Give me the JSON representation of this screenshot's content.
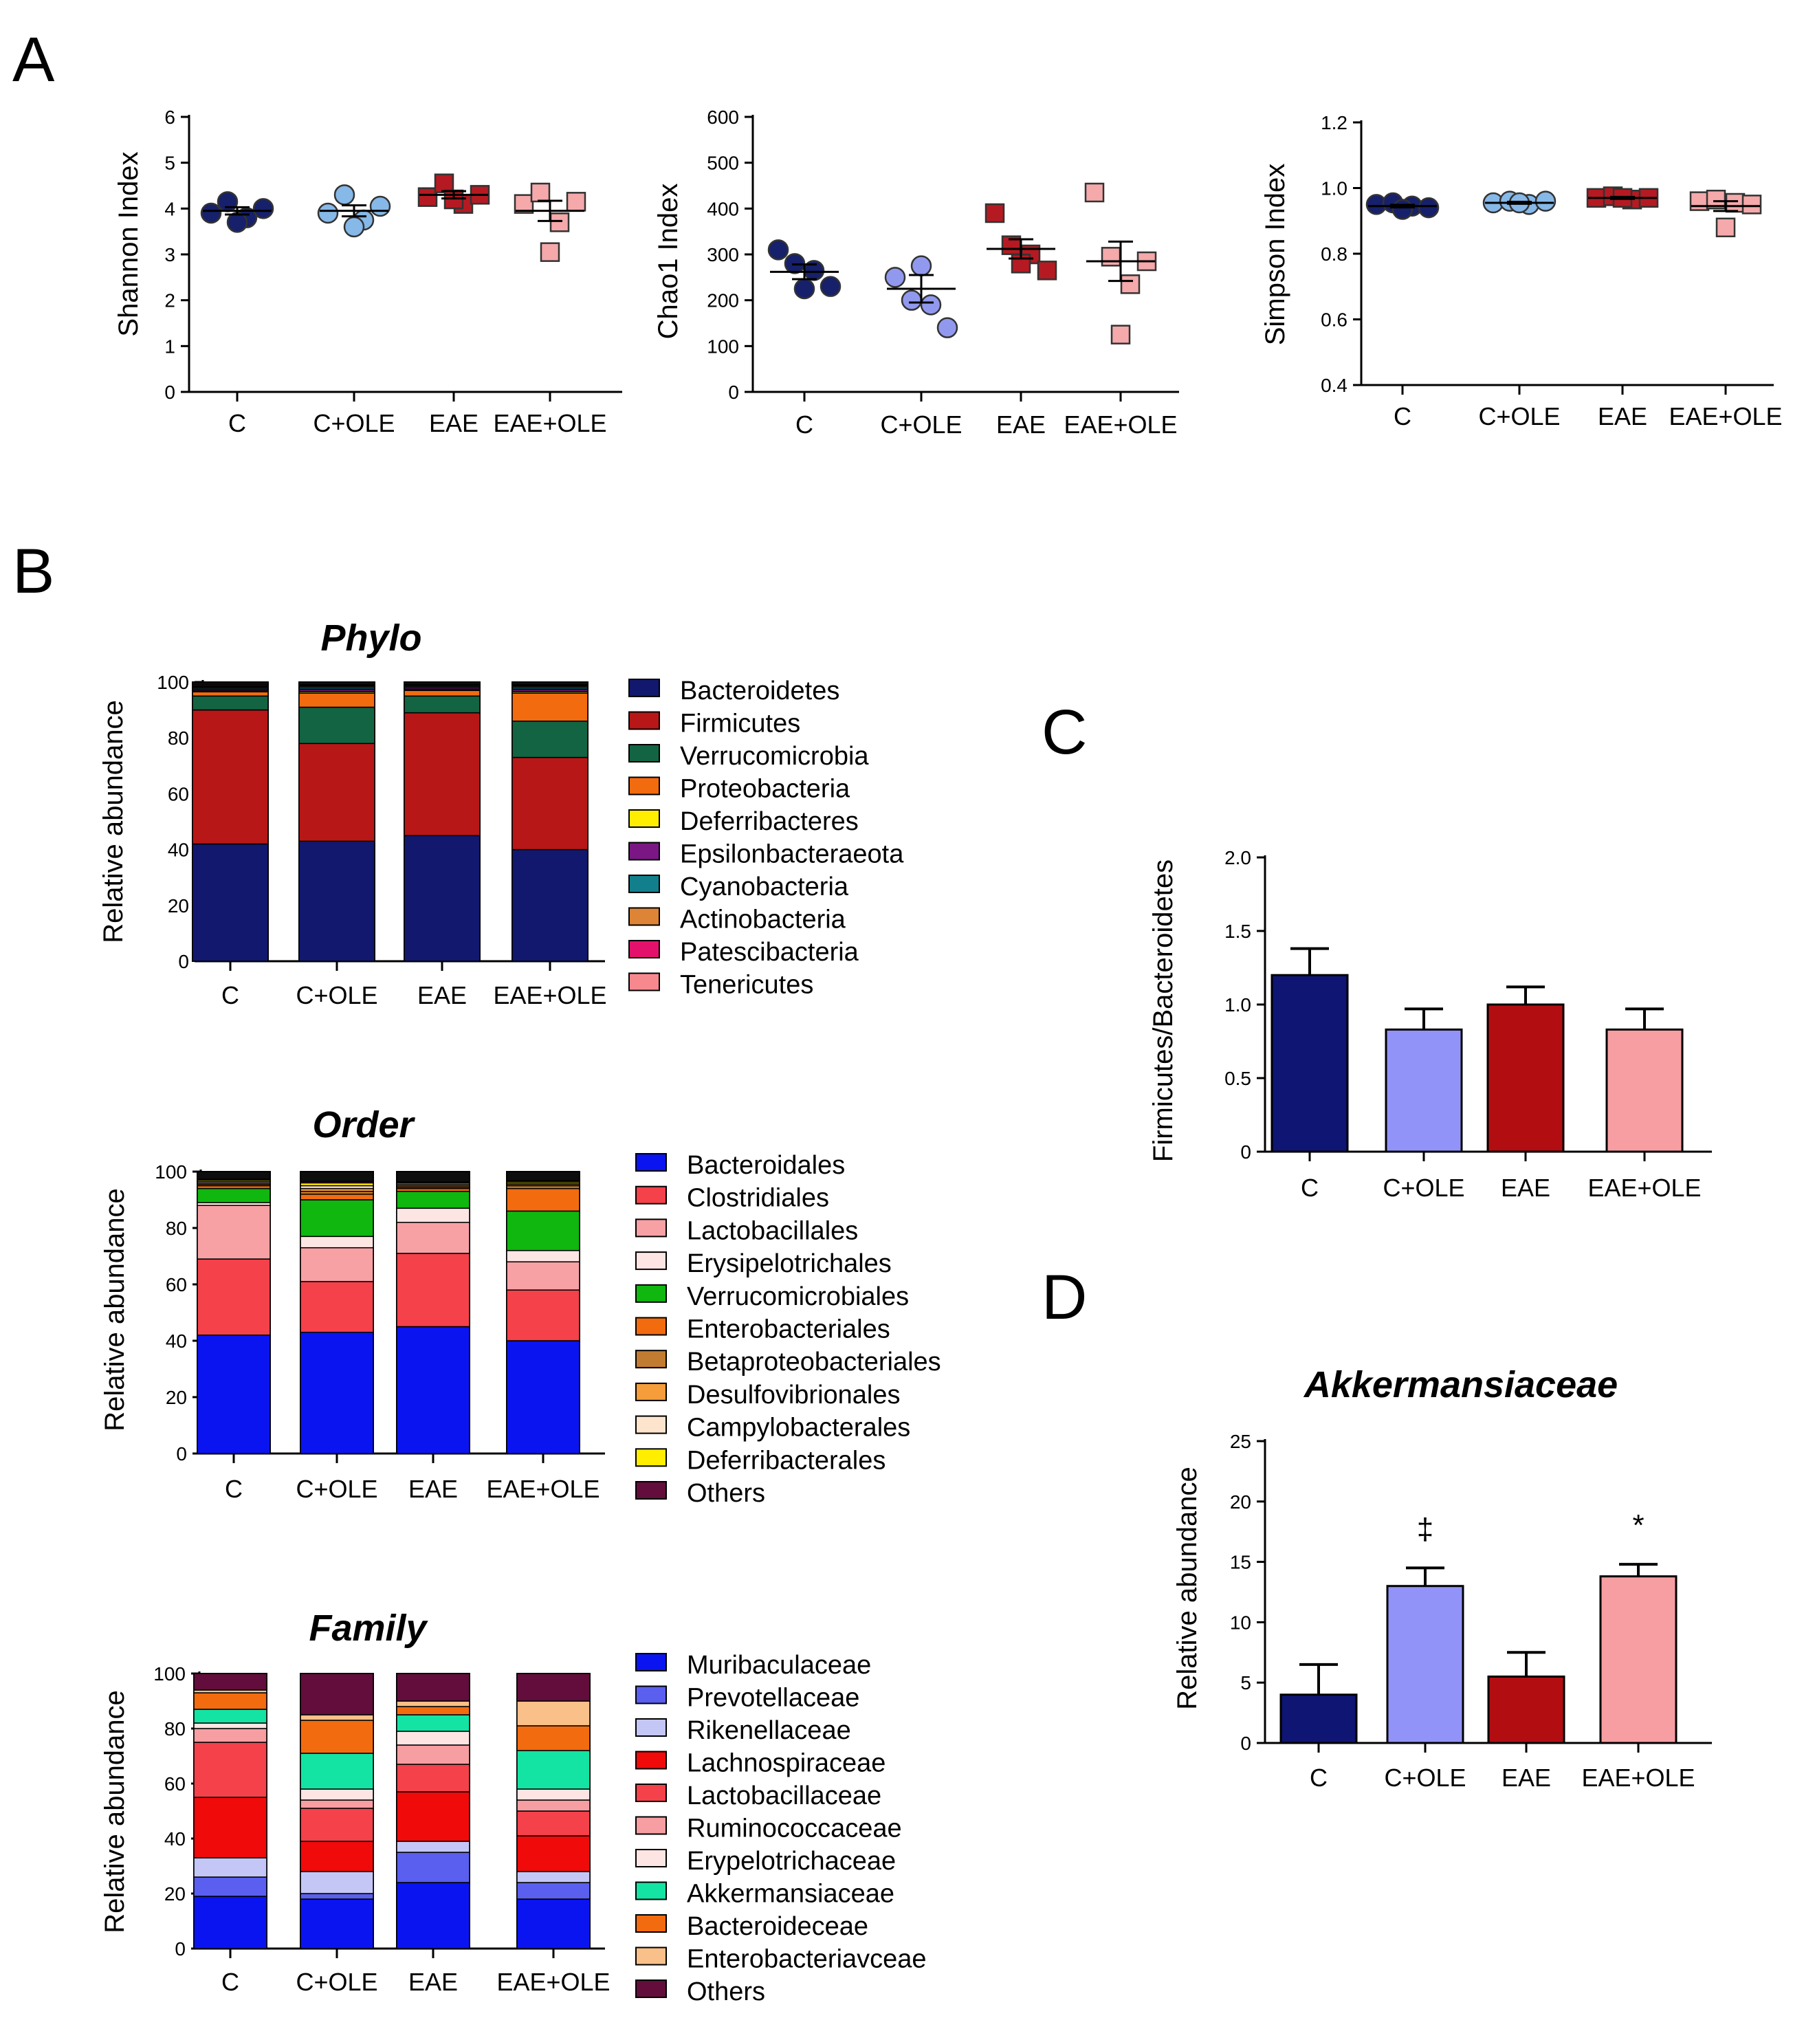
{
  "panel_letters": {
    "a": "A",
    "b": "B",
    "c": "C",
    "d": "D"
  },
  "chart_data": [
    {
      "id": "shannon",
      "type": "scatter",
      "panel": "A",
      "xlabel": "",
      "ylabel": "Shannon Index",
      "ylim": [
        0,
        6
      ],
      "yticks": [
        0,
        1,
        2,
        3,
        4,
        5,
        6
      ],
      "yticklabels": [
        "0",
        "1",
        "2",
        "3",
        "4",
        "5",
        "6"
      ],
      "categories": [
        "C",
        "C+OLE",
        "EAE",
        "EAE+OLE"
      ],
      "colors": [
        "#16206b",
        "#86b8e8",
        "#b51a22",
        "#f5a9aa"
      ],
      "markers": [
        "circle",
        "circle",
        "square",
        "square"
      ],
      "points": [
        [
          3.9,
          4.15,
          3.8,
          4.0,
          3.7
        ],
        [
          3.9,
          4.3,
          3.75,
          4.05,
          3.6
        ],
        [
          4.25,
          4.55,
          4.1,
          4.3,
          4.2
        ],
        [
          4.1,
          4.35,
          3.7,
          4.15,
          3.05
        ]
      ],
      "means": [
        3.95,
        3.95,
        4.3,
        3.95
      ],
      "sems": [
        0.08,
        0.12,
        0.08,
        0.22
      ]
    },
    {
      "id": "chao1",
      "type": "scatter",
      "panel": "A",
      "xlabel": "",
      "ylabel": "Chao1 Index",
      "ylim": [
        0,
        600
      ],
      "yticks": [
        0,
        100,
        200,
        300,
        400,
        500,
        600
      ],
      "yticklabels": [
        "0",
        "100",
        "200",
        "300",
        "400",
        "500",
        "600"
      ],
      "categories": [
        "C",
        "C+OLE",
        "EAE",
        "EAE+OLE"
      ],
      "colors": [
        "#16206b",
        "#9199ee",
        "#b51a22",
        "#f5a9aa"
      ],
      "markers": [
        "circle",
        "circle",
        "square",
        "square"
      ],
      "points": [
        [
          310,
          280,
          265,
          230,
          225
        ],
        [
          250,
          200,
          190,
          140,
          275
        ],
        [
          390,
          320,
          300,
          265,
          280
        ],
        [
          435,
          295,
          235,
          285,
          125
        ]
      ],
      "means": [
        262,
        225,
        312,
        285
      ],
      "sems": [
        16,
        30,
        21,
        43
      ]
    },
    {
      "id": "simpson",
      "type": "scatter",
      "panel": "A",
      "xlabel": "",
      "ylabel": "Simpson Index",
      "ylim": [
        0.4,
        1.2
      ],
      "yticks": [
        0.4,
        0.6,
        0.8,
        1.0,
        1.2
      ],
      "yticklabels": [
        "0.4",
        "0.6",
        "0.8",
        "1.0",
        "1.2"
      ],
      "categories": [
        "C",
        "C+OLE",
        "EAE",
        "EAE+OLE"
      ],
      "colors": [
        "#16206b",
        "#86b8e8",
        "#b51a22",
        "#f5a9aa"
      ],
      "markers": [
        "circle",
        "circle",
        "square",
        "square"
      ],
      "points": [
        [
          0.95,
          0.955,
          0.945,
          0.94,
          0.935
        ],
        [
          0.955,
          0.96,
          0.95,
          0.96,
          0.955
        ],
        [
          0.97,
          0.975,
          0.965,
          0.97,
          0.97
        ],
        [
          0.96,
          0.965,
          0.955,
          0.95,
          0.88
        ]
      ],
      "means": [
        0.945,
        0.955,
        0.97,
        0.945
      ],
      "sems": [
        0.004,
        0.003,
        0.003,
        0.015
      ]
    },
    {
      "id": "phylo",
      "type": "bar",
      "stacked": true,
      "panel": "B",
      "title": "Phylo",
      "xlabel": "",
      "ylabel": "Relative abundance",
      "ylim": [
        0,
        100
      ],
      "yticks": [
        0,
        20,
        40,
        60,
        80,
        100
      ],
      "categories": [
        "C",
        "C+OLE",
        "EAE",
        "EAE+OLE"
      ],
      "series": [
        {
          "name": "Bacteroidetes",
          "color": "#12186e",
          "values": [
            42,
            43,
            45,
            40
          ]
        },
        {
          "name": "Firmicutes",
          "color": "#b81717",
          "values": [
            48,
            35,
            44,
            33
          ]
        },
        {
          "name": "Verrucomicrobia",
          "color": "#136443",
          "values": [
            5,
            13,
            6,
            13
          ]
        },
        {
          "name": "Proteobacteria",
          "color": "#f26b0f",
          "values": [
            1.5,
            5,
            2,
            10
          ]
        },
        {
          "name": "Deferribacteres",
          "color": "#ffee00",
          "values": [
            0.3,
            0.5,
            0.3,
            0.5
          ]
        },
        {
          "name": "Epsilonbacteraeota",
          "color": "#7a1784",
          "values": [
            0.5,
            0.8,
            0.6,
            0.8
          ]
        },
        {
          "name": "Cyanobacteria",
          "color": "#127f8c",
          "values": [
            0.5,
            0.6,
            0.5,
            0.6
          ]
        },
        {
          "name": "Actinobacteria",
          "color": "#dd8436",
          "values": [
            0.4,
            0.5,
            0.4,
            0.5
          ]
        },
        {
          "name": "Patescibacteria",
          "color": "#e3116c",
          "values": [
            0.4,
            0.3,
            0.3,
            0.3
          ]
        },
        {
          "name": "Tenericutes",
          "color": "#f7898e",
          "values": [
            0.4,
            0.3,
            0.4,
            0.3
          ]
        }
      ],
      "residual": {
        "name": "",
        "color": "#0d0d0d"
      }
    },
    {
      "id": "order",
      "type": "bar",
      "stacked": true,
      "panel": "B",
      "title": "Order",
      "xlabel": "",
      "ylabel": "Relative abundance",
      "ylim": [
        0,
        100
      ],
      "yticks": [
        0,
        20,
        40,
        60,
        80,
        100
      ],
      "categories": [
        "C",
        "C+OLE",
        "EAE",
        "EAE+OLE"
      ],
      "series": [
        {
          "name": "Bacteroidales",
          "color": "#0a14f0",
          "values": [
            42,
            43,
            45,
            40
          ]
        },
        {
          "name": "Clostridiales",
          "color": "#f4414a",
          "values": [
            27,
            18,
            26,
            18
          ]
        },
        {
          "name": "Lactobacillales",
          "color": "#f7a1a5",
          "values": [
            19,
            12,
            11,
            10
          ]
        },
        {
          "name": "Erysipelotrichales",
          "color": "#fde5e3",
          "values": [
            1,
            4,
            5,
            4
          ]
        },
        {
          "name": "Verrucomicrobiales",
          "color": "#0fb70f",
          "values": [
            5,
            13,
            6,
            14
          ]
        },
        {
          "name": "Enterobacteriales",
          "color": "#f26b0f",
          "values": [
            1,
            2,
            1,
            8
          ]
        },
        {
          "name": "Betaproteobacteriales",
          "color": "#c27c31",
          "values": [
            0.5,
            1,
            0.5,
            1
          ]
        },
        {
          "name": "Desulfovibrionales",
          "color": "#f59d3a",
          "values": [
            0.5,
            1,
            0.5,
            0.5
          ]
        },
        {
          "name": "Campylobacterales",
          "color": "#fde4cc",
          "values": [
            0.5,
            1,
            0.5,
            0.5
          ]
        },
        {
          "name": "Deferribacterales",
          "color": "#ffee00",
          "values": [
            0.5,
            1,
            0.5,
            0.5
          ]
        },
        {
          "name": "Others",
          "color": "#620d3b",
          "values": [
            0.3,
            0.5,
            0.3,
            0.3
          ]
        }
      ],
      "residual": {
        "name": "",
        "color": "#0d0d0d"
      }
    },
    {
      "id": "family",
      "type": "bar",
      "stacked": true,
      "panel": "B",
      "title": "Family",
      "xlabel": "",
      "ylabel": "Relative abundance",
      "ylim": [
        0,
        100
      ],
      "yticks": [
        0,
        20,
        40,
        60,
        80,
        100
      ],
      "categories": [
        "C",
        "C+OLE",
        "EAE",
        "EAE+OLE"
      ],
      "series": [
        {
          "name": "Muribaculaceae",
          "color": "#0a14f0",
          "values": [
            19,
            18,
            24,
            18
          ]
        },
        {
          "name": "Prevotellaceae",
          "color": "#5a5ff0",
          "values": [
            7,
            2,
            11,
            6
          ]
        },
        {
          "name": "Rikenellaceae",
          "color": "#c4c6f6",
          "values": [
            7,
            8,
            4,
            4
          ]
        },
        {
          "name": "Lachnospiraceae",
          "color": "#f00a0a",
          "values": [
            22,
            11,
            18,
            13
          ]
        },
        {
          "name": "Lactobacillaceae",
          "color": "#f4414a",
          "values": [
            20,
            12,
            10,
            9
          ]
        },
        {
          "name": "Ruminococcaceae",
          "color": "#f69ea2",
          "values": [
            5,
            3,
            7,
            4
          ]
        },
        {
          "name": "Erypelotrichaceae",
          "color": "#fde5e3",
          "values": [
            2,
            4,
            5,
            4
          ]
        },
        {
          "name": "Akkermansiaceae",
          "color": "#13e4a4",
          "values": [
            5,
            13,
            6,
            14
          ]
        },
        {
          "name": "Bacteroideceae",
          "color": "#f26b0f",
          "values": [
            6,
            12,
            3,
            9
          ]
        },
        {
          "name": "Enterobacteriavceae",
          "color": "#f9c089",
          "values": [
            1,
            2,
            2,
            9
          ]
        },
        {
          "name": "Others",
          "color": "#620d3b",
          "values": [
            6,
            15,
            10,
            10
          ]
        }
      ],
      "residual": {
        "name": "",
        "color": "#0d0d0d"
      }
    },
    {
      "id": "fb_ratio",
      "type": "bar",
      "panel": "C",
      "xlabel": "",
      "ylabel": "Firmicutes/Bacteroidetes",
      "ylim": [
        0,
        2.0
      ],
      "yticks": [
        0,
        0.5,
        1.0,
        1.5,
        2.0
      ],
      "yticklabels": [
        "0",
        "0.5",
        "1.0",
        "1.5",
        "2.0"
      ],
      "categories": [
        "C",
        "C+OLE",
        "EAE",
        "EAE+OLE"
      ],
      "values": [
        1.2,
        0.83,
        1.0,
        0.83
      ],
      "errors": [
        0.18,
        0.14,
        0.12,
        0.14
      ],
      "colors": [
        "#0f1572",
        "#9293f8",
        "#b20e12",
        "#f79ea3"
      ],
      "annotations": [
        "",
        "",
        "",
        ""
      ]
    },
    {
      "id": "akkermansiaceae",
      "type": "bar",
      "panel": "D",
      "title": "Akkermansiaceae",
      "xlabel": "",
      "ylabel": "Relative abundance",
      "ylim": [
        0,
        25
      ],
      "yticks": [
        0,
        5,
        10,
        15,
        20,
        25
      ],
      "yticklabels": [
        "0",
        "5",
        "10",
        "15",
        "20",
        "25"
      ],
      "categories": [
        "C",
        "C+OLE",
        "EAE",
        "EAE+OLE"
      ],
      "values": [
        4.0,
        13.0,
        5.5,
        13.8
      ],
      "errors": [
        2.5,
        1.5,
        2.0,
        1.0
      ],
      "colors": [
        "#0f1572",
        "#9293f8",
        "#b20e12",
        "#f79ea3"
      ],
      "annotations": [
        "",
        "‡",
        "",
        "*"
      ]
    }
  ]
}
